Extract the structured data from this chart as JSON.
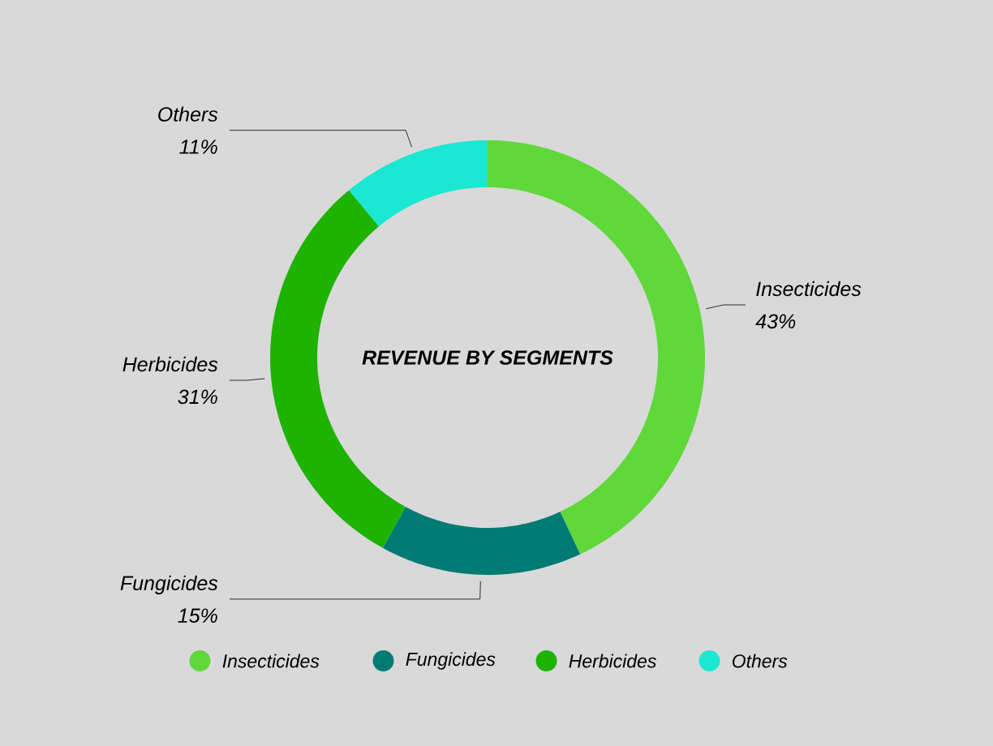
{
  "chart_data": {
    "type": "donut",
    "title": "REVENUE BY SEGMENTS",
    "categories": [
      "Insecticides",
      "Fungicides",
      "Herbicides",
      "Others"
    ],
    "values": [
      43,
      15,
      31,
      11
    ],
    "value_labels": [
      "43%",
      "15%",
      "31%",
      "11%"
    ],
    "colors": [
      "#5fd83a",
      "#007b73",
      "#1db300",
      "#1ae8d3"
    ],
    "legend": "bottom"
  }
}
